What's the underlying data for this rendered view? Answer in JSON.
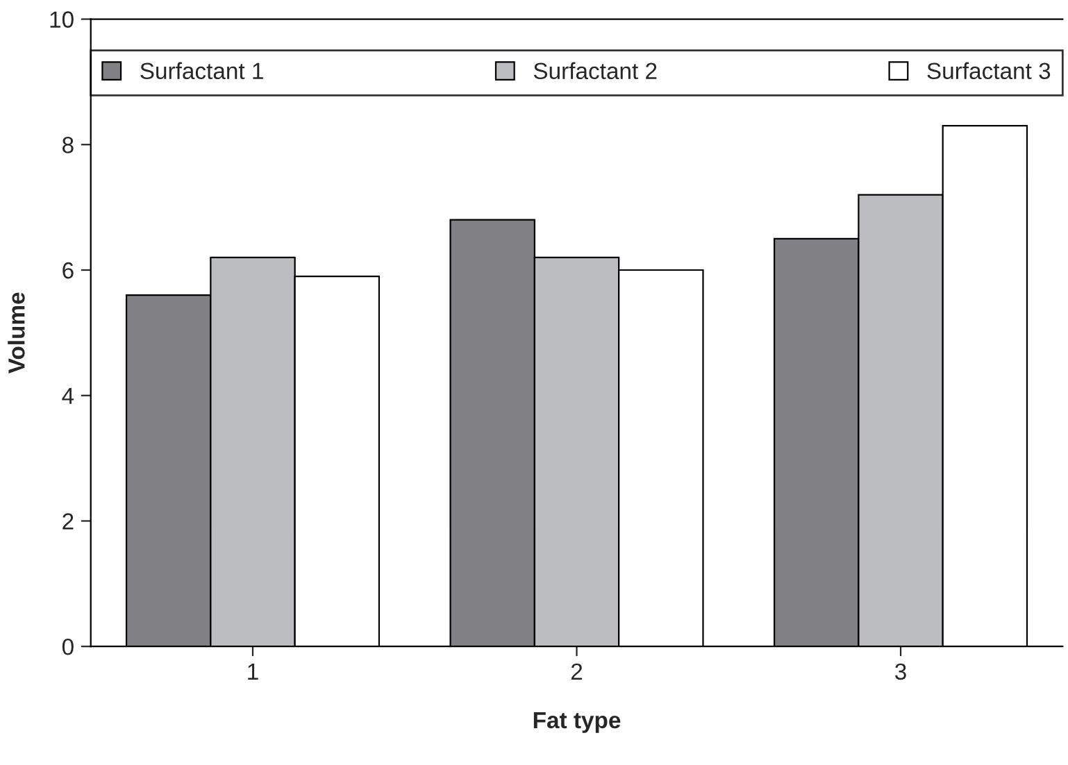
{
  "chart_data": {
    "type": "bar",
    "xlabel": "Fat type",
    "ylabel": "Volume",
    "categories": [
      "1",
      "2",
      "3"
    ],
    "series": [
      {
        "name": "Surfactant 1",
        "color": "#808085",
        "values": [
          5.6,
          6.8,
          6.5
        ]
      },
      {
        "name": "Surfactant 2",
        "color": "#bcbdc1",
        "values": [
          6.2,
          6.2,
          7.2
        ]
      },
      {
        "name": "Surfactant 3",
        "color": "#ffffff",
        "values": [
          5.9,
          6.0,
          8.3
        ]
      }
    ],
    "ylim": [
      0,
      10
    ],
    "yticks": [
      0,
      2,
      4,
      6,
      8,
      10
    ],
    "grid": false,
    "legend": "top"
  }
}
